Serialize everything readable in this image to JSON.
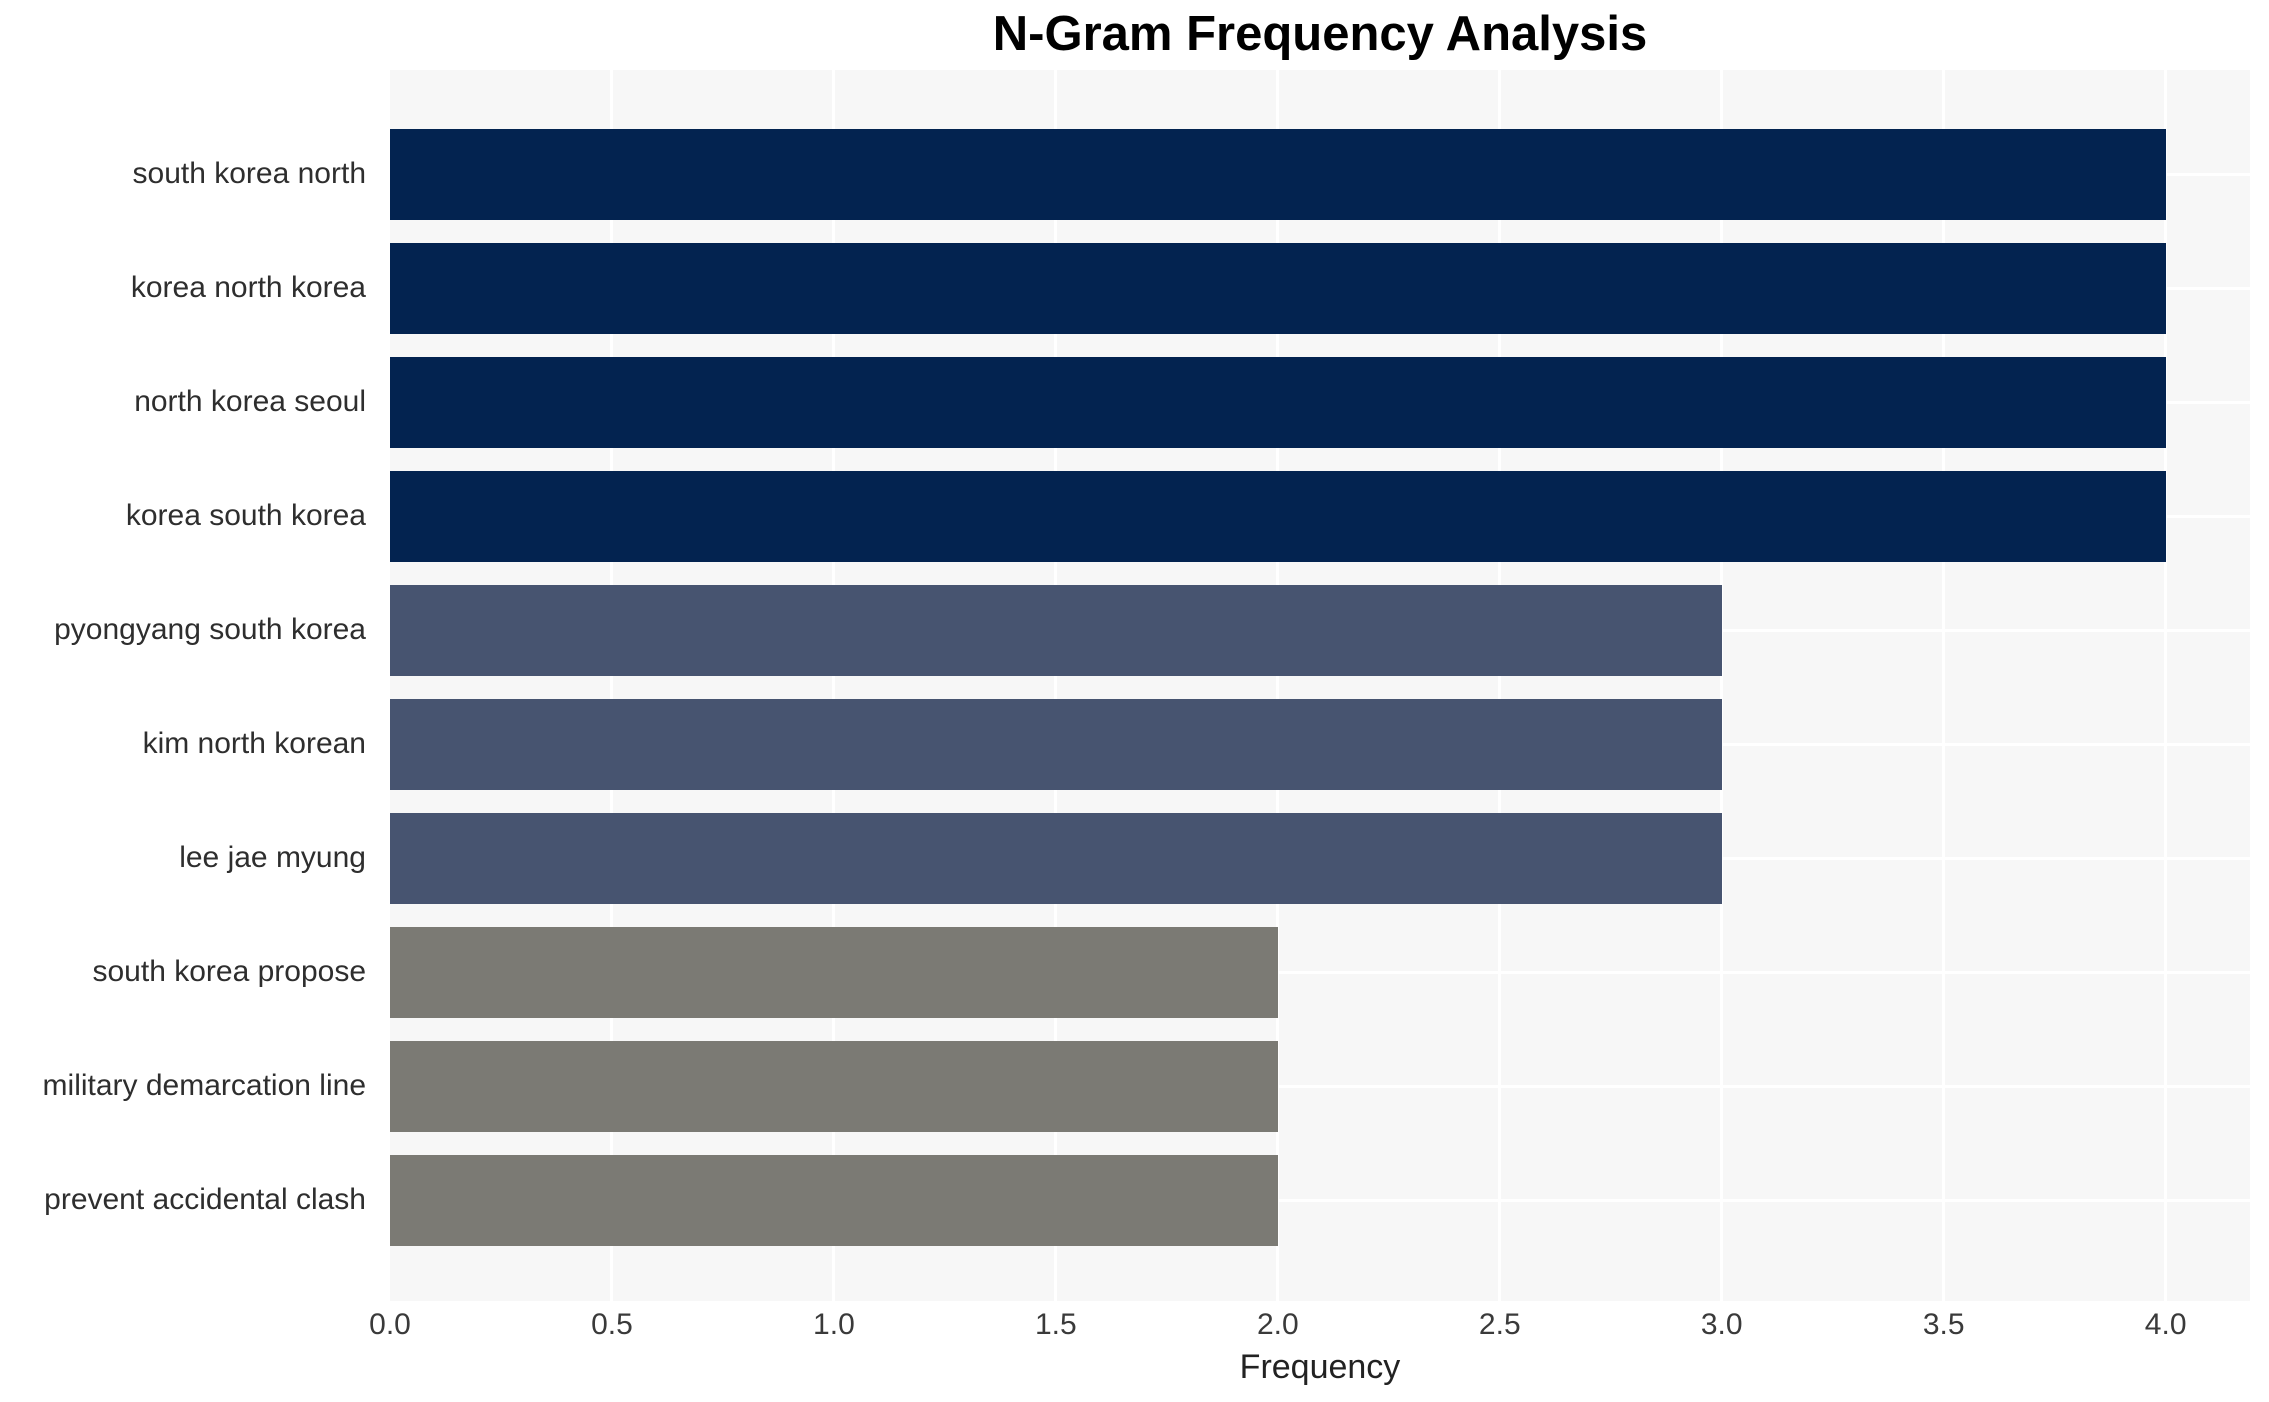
{
  "chart_data": {
    "type": "bar",
    "orientation": "horizontal",
    "title": "N-Gram Frequency Analysis",
    "xlabel": "Frequency",
    "ylabel": "",
    "categories": [
      "south korea north",
      "korea north korea",
      "north korea seoul",
      "korea south korea",
      "pyongyang south korea",
      "kim north korean",
      "lee jae myung",
      "south korea propose",
      "military demarcation line",
      "prevent accidental clash"
    ],
    "values": [
      4,
      4,
      4,
      4,
      3,
      3,
      3,
      2,
      2,
      2
    ],
    "bar_colors": [
      "#032350",
      "#032350",
      "#032350",
      "#032350",
      "#475470",
      "#475470",
      "#475470",
      "#7b7a74",
      "#7b7a74",
      "#7b7a74"
    ],
    "palette": {
      "frequency_4": "#032350",
      "frequency_3": "#475470",
      "frequency_2": "#7b7a74"
    },
    "xlim": [
      0,
      4.19
    ],
    "xticks": [
      0,
      0.5,
      1,
      1.5,
      2,
      2.5,
      3,
      3.5,
      4
    ],
    "xtick_labels": [
      "0.0",
      "0.5",
      "1.0",
      "1.5",
      "2.0",
      "2.5",
      "3.0",
      "3.5",
      "4.0"
    ],
    "grid": "white vertical lines at 0.5 steps and white horizontal lines at category centers on light gray plot background",
    "legend": "none",
    "plot_background": "#f7f7f7",
    "grid_color": "#ffffff",
    "figure_background": "#ffffff",
    "text_colors": {
      "title": "#000000",
      "category_labels": "#2e2e2e",
      "tick_labels": "#3a3a3a",
      "axis_label": "#222222"
    }
  }
}
